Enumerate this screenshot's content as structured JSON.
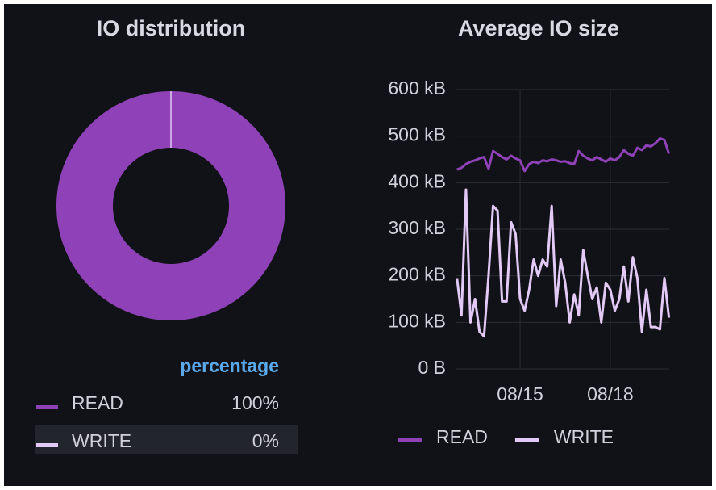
{
  "chart_data": [
    {
      "type": "pie",
      "title": "IO distribution",
      "donut": true,
      "categories": [
        "READ",
        "WRITE"
      ],
      "values": [
        100,
        0
      ],
      "value_labels": [
        "100%",
        "0%"
      ],
      "colors": [
        "#8f42b8",
        "#e3c9f5"
      ],
      "legend": "bottom",
      "legend_values_header": "percentage"
    },
    {
      "type": "line",
      "title": "Average IO size",
      "x": [
        12.9,
        13.05,
        13.2,
        13.35,
        13.5,
        13.65,
        13.8,
        13.95,
        14.1,
        14.25,
        14.4,
        14.55,
        14.7,
        14.85,
        15,
        15.15,
        15.3,
        15.45,
        15.6,
        15.75,
        15.9,
        16.05,
        16.2,
        16.35,
        16.5,
        16.65,
        16.8,
        16.95,
        17.1,
        17.25,
        17.4,
        17.55,
        17.7,
        17.85,
        18,
        18.15,
        18.3,
        18.45,
        18.6,
        18.75,
        18.9,
        19.05,
        19.2,
        19.35,
        19.5,
        19.65,
        19.8,
        19.95
      ],
      "series": [
        {
          "name": "READ",
          "color": "#8f42b8",
          "values": [
            428,
            432,
            440,
            445,
            448,
            452,
            455,
            430,
            468,
            462,
            455,
            450,
            458,
            452,
            448,
            425,
            440,
            445,
            442,
            448,
            446,
            450,
            448,
            445,
            446,
            442,
            440,
            468,
            458,
            452,
            448,
            455,
            450,
            445,
            452,
            448,
            455,
            470,
            462,
            458,
            475,
            470,
            480,
            478,
            485,
            495,
            492,
            462
          ]
        },
        {
          "name": "WRITE",
          "color": "#e3c9f5",
          "values": [
            195,
            115,
            385,
            100,
            150,
            80,
            70,
            200,
            350,
            340,
            145,
            145,
            315,
            290,
            150,
            125,
            170,
            235,
            200,
            235,
            220,
            350,
            135,
            235,
            185,
            100,
            160,
            115,
            255,
            200,
            150,
            175,
            100,
            185,
            170,
            125,
            150,
            220,
            145,
            240,
            195,
            80,
            170,
            90,
            90,
            85,
            195,
            110
          ]
        }
      ],
      "xlim": [
        12.88,
        19.96
      ],
      "xticks": [
        {
          "value": 15,
          "label": "08/15"
        },
        {
          "value": 18,
          "label": "08/18"
        }
      ],
      "ylim": [
        0,
        600
      ],
      "yticks": [
        {
          "value": 0,
          "label": "0 B"
        },
        {
          "value": 100,
          "label": "100 kB"
        },
        {
          "value": 200,
          "label": "200 kB"
        },
        {
          "value": 300,
          "label": "300 kB"
        },
        {
          "value": 400,
          "label": "400 kB"
        },
        {
          "value": 500,
          "label": "500 kB"
        },
        {
          "value": 600,
          "label": "600 kB"
        }
      ],
      "grid": true,
      "legend": "bottom"
    }
  ]
}
